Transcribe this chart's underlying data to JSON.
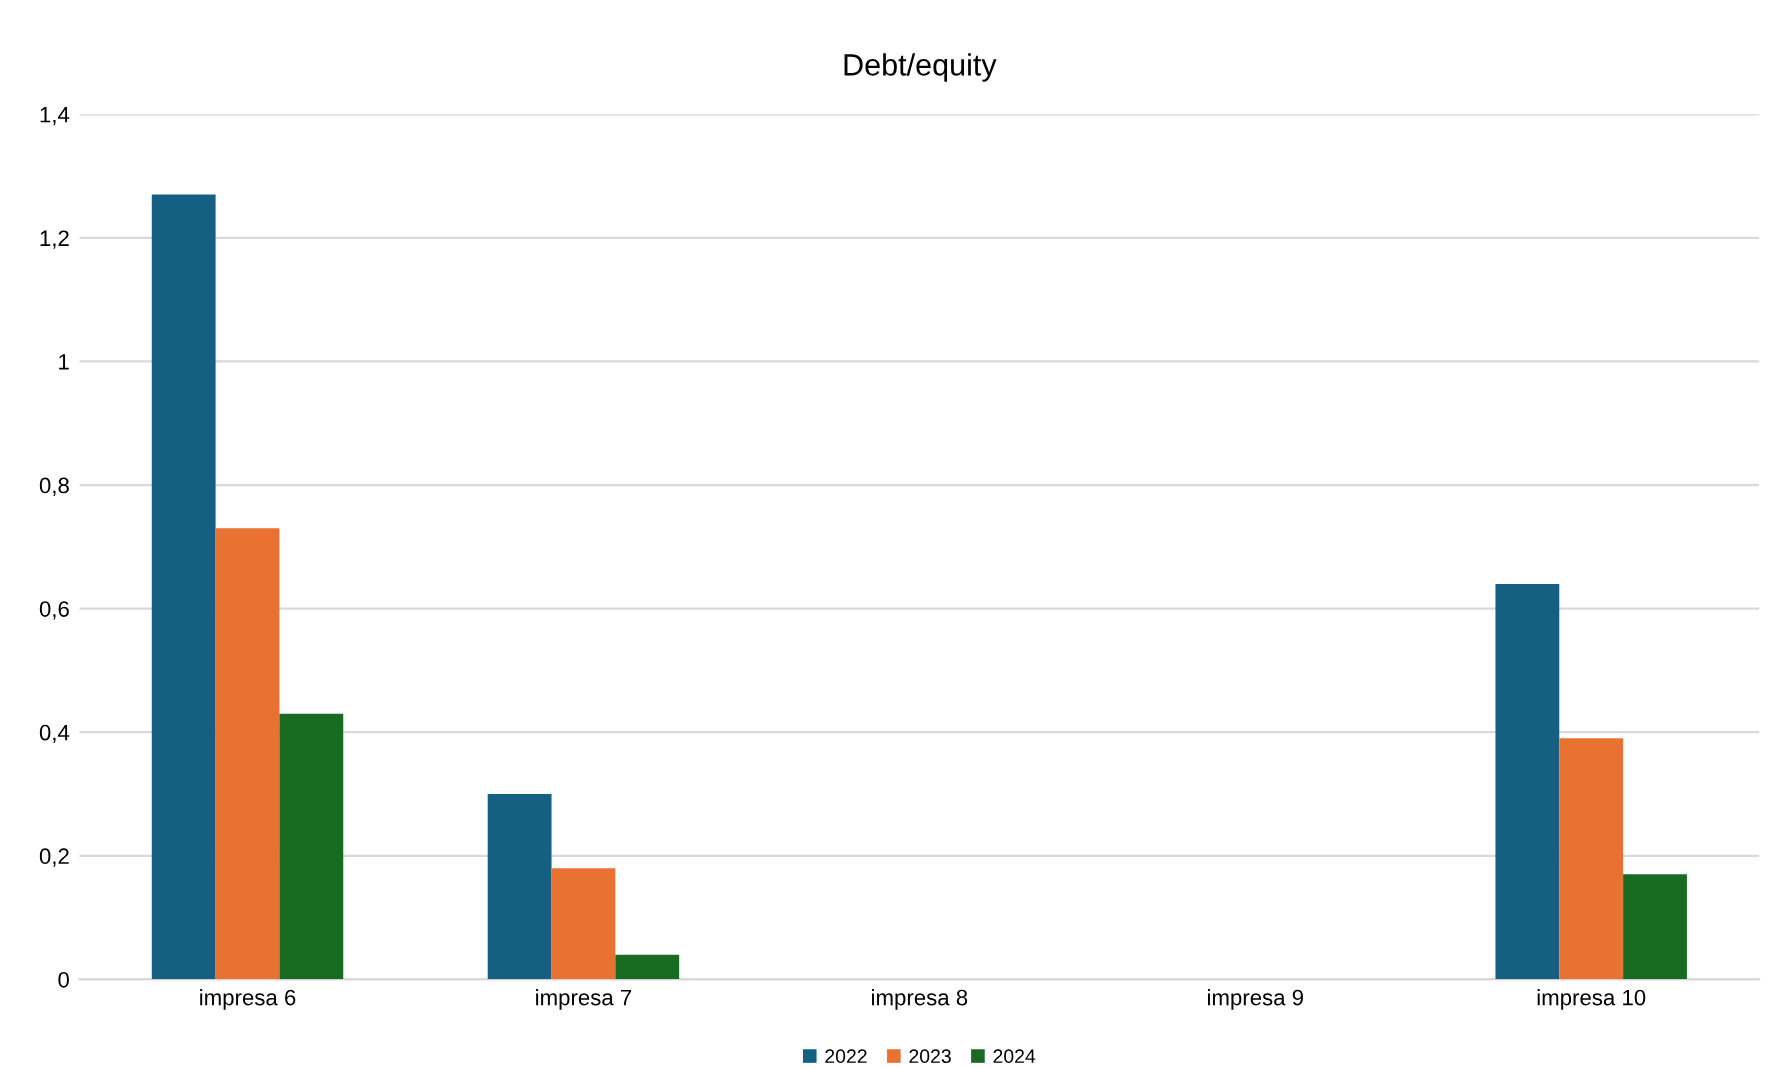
{
  "chart_data": {
    "type": "bar",
    "title": "Debt/equity",
    "categories": [
      "impresa 6",
      "impresa 7",
      "impresa 8",
      "impresa 9",
      "impresa 10"
    ],
    "series": [
      {
        "name": "2022",
        "color": "#156082",
        "values": [
          1.27,
          0.3,
          0,
          0,
          0.64
        ]
      },
      {
        "name": "2023",
        "color": "#e97132",
        "values": [
          0.73,
          0.18,
          0,
          0,
          0.39
        ]
      },
      {
        "name": "2024",
        "color": "#196b24",
        "values": [
          0.43,
          0.04,
          0,
          0,
          0.17
        ]
      }
    ],
    "ylim": [
      0,
      1.4
    ],
    "yticks": [
      0,
      {
        "value": 0.2,
        "label": "0,2"
      },
      {
        "value": 0.4,
        "label": "0,4"
      },
      {
        "value": 0.6,
        "label": "0,6"
      },
      {
        "value": 0.8,
        "label": "0,8"
      },
      1,
      {
        "value": 1.2,
        "label": "1,2"
      },
      {
        "value": 1.4,
        "label": "1,4"
      }
    ],
    "grid": "y",
    "legend": "bottom"
  }
}
